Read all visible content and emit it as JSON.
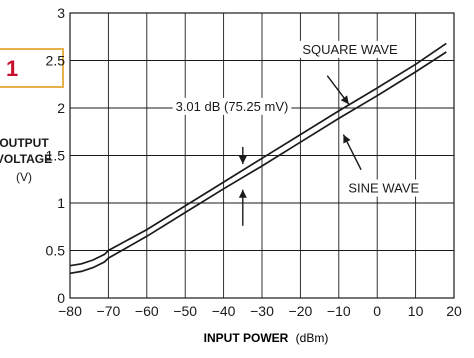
{
  "figure_badge": "1",
  "chart_data": {
    "type": "line",
    "xlabel_bold": "INPUT POWER",
    "xlabel_unit": "(dBm)",
    "ylabel_line1": "OUTPUT",
    "ylabel_line2": "VOLTAGE",
    "ylabel_unit": "(V)",
    "xlim": [
      -80,
      20
    ],
    "ylim": [
      0,
      3
    ],
    "x_ticks": [
      -80,
      -70,
      -60,
      -50,
      -40,
      -30,
      -20,
      -10,
      0,
      10,
      20
    ],
    "x_tick_labels": [
      "−80",
      "−70",
      "−60",
      "−50",
      "−40",
      "−30",
      "−20",
      "−10",
      "0",
      "10",
      "20"
    ],
    "y_ticks": [
      0,
      0.5,
      1,
      1.5,
      2,
      2.5,
      3
    ],
    "y_tick_labels": [
      "0",
      "0.5",
      "1",
      "1.5",
      "2",
      "2.5",
      "3"
    ],
    "grid": true,
    "series": [
      {
        "name": "SQUARE WAVE",
        "x": [
          -80,
          -77,
          -74,
          -71,
          -70,
          -60,
          -50,
          -40,
          -30,
          -20,
          -10,
          0,
          10,
          18
        ],
        "y": [
          0.34,
          0.36,
          0.4,
          0.46,
          0.5,
          0.72,
          0.97,
          1.22,
          1.47,
          1.72,
          1.97,
          2.21,
          2.46,
          2.68
        ]
      },
      {
        "name": "SINE WAVE",
        "x": [
          -80,
          -77,
          -74,
          -71,
          -70,
          -60,
          -50,
          -40,
          -30,
          -20,
          -10,
          0,
          10,
          18
        ],
        "y": [
          0.26,
          0.28,
          0.32,
          0.38,
          0.42,
          0.65,
          0.9,
          1.15,
          1.39,
          1.64,
          1.89,
          2.13,
          2.38,
          2.59
        ]
      }
    ],
    "annotations": {
      "offset_label": "3.01 dB (75.25 mV)",
      "square_label": "SQUARE WAVE",
      "sine_label": "SINE WAVE"
    }
  }
}
